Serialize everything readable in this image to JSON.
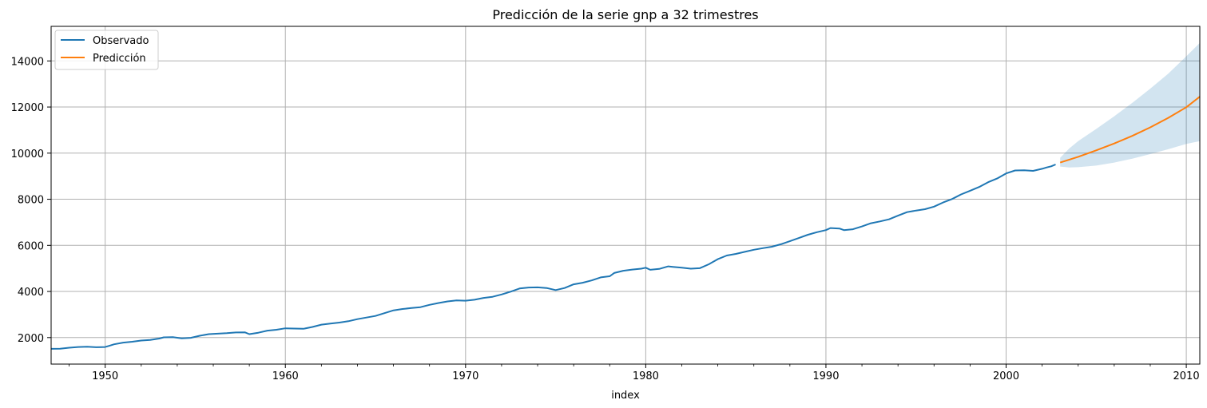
{
  "chart_data": {
    "type": "line",
    "title": "Predicción de la serie gnp a 32 trimestres",
    "xlabel": "index",
    "ylabel": "",
    "xlim": [
      1947.0,
      2010.75
    ],
    "ylim": [
      850,
      15500
    ],
    "x_ticks": [
      1950,
      1960,
      1970,
      1980,
      1990,
      2000,
      2010
    ],
    "x_tick_labels": [
      "1950",
      "1960",
      "1970",
      "1980",
      "1990",
      "2000",
      "2010"
    ],
    "y_ticks": [
      2000,
      4000,
      6000,
      8000,
      10000,
      12000,
      14000
    ],
    "y_tick_labels": [
      "2000",
      "4000",
      "6000",
      "8000",
      "10000",
      "12000",
      "14000"
    ],
    "grid": true,
    "legend_position": "top-left",
    "legend": [
      "Observado",
      "Predicción"
    ],
    "series": [
      {
        "name": "Observado",
        "color": "#1f77b4",
        "points": [
          [
            1947.0,
            1510
          ],
          [
            1947.5,
            1520
          ],
          [
            1948.0,
            1560
          ],
          [
            1948.5,
            1590
          ],
          [
            1949.0,
            1600
          ],
          [
            1949.5,
            1580
          ],
          [
            1950.0,
            1590
          ],
          [
            1950.25,
            1650
          ],
          [
            1950.5,
            1710
          ],
          [
            1951.0,
            1780
          ],
          [
            1951.5,
            1820
          ],
          [
            1952.0,
            1870
          ],
          [
            1952.5,
            1900
          ],
          [
            1953.0,
            1960
          ],
          [
            1953.25,
            2010
          ],
          [
            1953.75,
            2020
          ],
          [
            1954.25,
            1970
          ],
          [
            1954.75,
            1990
          ],
          [
            1955.25,
            2080
          ],
          [
            1955.75,
            2150
          ],
          [
            1956.25,
            2170
          ],
          [
            1956.75,
            2190
          ],
          [
            1957.25,
            2220
          ],
          [
            1957.75,
            2230
          ],
          [
            1958.0,
            2150
          ],
          [
            1958.5,
            2210
          ],
          [
            1959.0,
            2300
          ],
          [
            1959.5,
            2340
          ],
          [
            1960.0,
            2400
          ],
          [
            1960.5,
            2390
          ],
          [
            1961.0,
            2380
          ],
          [
            1961.5,
            2460
          ],
          [
            1962.0,
            2560
          ],
          [
            1962.5,
            2610
          ],
          [
            1963.0,
            2650
          ],
          [
            1963.5,
            2710
          ],
          [
            1964.0,
            2800
          ],
          [
            1964.5,
            2870
          ],
          [
            1965.0,
            2940
          ],
          [
            1965.5,
            3060
          ],
          [
            1966.0,
            3180
          ],
          [
            1966.5,
            3240
          ],
          [
            1967.0,
            3280
          ],
          [
            1967.5,
            3320
          ],
          [
            1968.0,
            3420
          ],
          [
            1968.5,
            3500
          ],
          [
            1969.0,
            3570
          ],
          [
            1969.5,
            3610
          ],
          [
            1970.0,
            3600
          ],
          [
            1970.5,
            3640
          ],
          [
            1971.0,
            3720
          ],
          [
            1971.5,
            3770
          ],
          [
            1972.0,
            3870
          ],
          [
            1972.5,
            3990
          ],
          [
            1973.0,
            4130
          ],
          [
            1973.5,
            4170
          ],
          [
            1974.0,
            4180
          ],
          [
            1974.5,
            4150
          ],
          [
            1975.0,
            4060
          ],
          [
            1975.5,
            4150
          ],
          [
            1976.0,
            4310
          ],
          [
            1976.5,
            4380
          ],
          [
            1977.0,
            4480
          ],
          [
            1977.5,
            4610
          ],
          [
            1978.0,
            4660
          ],
          [
            1978.25,
            4800
          ],
          [
            1978.75,
            4900
          ],
          [
            1979.25,
            4950
          ],
          [
            1979.75,
            4990
          ],
          [
            1980.0,
            5030
          ],
          [
            1980.25,
            4940
          ],
          [
            1980.75,
            4980
          ],
          [
            1981.25,
            5090
          ],
          [
            1981.5,
            5070
          ],
          [
            1982.0,
            5030
          ],
          [
            1982.5,
            4990
          ],
          [
            1983.0,
            5010
          ],
          [
            1983.5,
            5180
          ],
          [
            1984.0,
            5400
          ],
          [
            1984.5,
            5560
          ],
          [
            1985.0,
            5630
          ],
          [
            1985.5,
            5720
          ],
          [
            1986.0,
            5810
          ],
          [
            1986.5,
            5880
          ],
          [
            1987.0,
            5940
          ],
          [
            1987.5,
            6050
          ],
          [
            1988.0,
            6180
          ],
          [
            1988.5,
            6320
          ],
          [
            1989.0,
            6460
          ],
          [
            1989.5,
            6570
          ],
          [
            1990.0,
            6660
          ],
          [
            1990.25,
            6750
          ],
          [
            1990.75,
            6730
          ],
          [
            1991.0,
            6660
          ],
          [
            1991.5,
            6700
          ],
          [
            1992.0,
            6820
          ],
          [
            1992.5,
            6960
          ],
          [
            1993.0,
            7040
          ],
          [
            1993.5,
            7130
          ],
          [
            1994.0,
            7290
          ],
          [
            1994.5,
            7440
          ],
          [
            1995.0,
            7510
          ],
          [
            1995.5,
            7570
          ],
          [
            1996.0,
            7680
          ],
          [
            1996.5,
            7860
          ],
          [
            1997.0,
            8010
          ],
          [
            1997.5,
            8210
          ],
          [
            1998.0,
            8370
          ],
          [
            1998.5,
            8530
          ],
          [
            1999.0,
            8740
          ],
          [
            1999.5,
            8900
          ],
          [
            2000.0,
            9120
          ],
          [
            2000.5,
            9250
          ],
          [
            2001.0,
            9260
          ],
          [
            2001.5,
            9230
          ],
          [
            2002.0,
            9320
          ],
          [
            2002.25,
            9380
          ],
          [
            2002.5,
            9430
          ],
          [
            2002.75,
            9510
          ]
        ]
      },
      {
        "name": "Predicción",
        "color": "#ff7f0e",
        "points": [
          [
            2003.0,
            9590
          ],
          [
            2004.0,
            9840
          ],
          [
            2005.0,
            10120
          ],
          [
            2006.0,
            10420
          ],
          [
            2007.0,
            10750
          ],
          [
            2008.0,
            11120
          ],
          [
            2009.0,
            11530
          ],
          [
            2010.0,
            11990
          ],
          [
            2010.75,
            12450
          ]
        ]
      }
    ],
    "confidence_band": {
      "color": "#1f77b4",
      "upper": [
        [
          2003.0,
          9800
        ],
        [
          2003.5,
          10200
        ],
        [
          2004.0,
          10520
        ],
        [
          2005.0,
          11050
        ],
        [
          2006.0,
          11600
        ],
        [
          2007.0,
          12180
        ],
        [
          2008.0,
          12800
        ],
        [
          2009.0,
          13450
        ],
        [
          2010.0,
          14200
        ],
        [
          2010.75,
          14780
        ]
      ],
      "lower": [
        [
          2003.0,
          9420
        ],
        [
          2003.5,
          9380
        ],
        [
          2004.0,
          9390
        ],
        [
          2005.0,
          9460
        ],
        [
          2006.0,
          9590
        ],
        [
          2007.0,
          9760
        ],
        [
          2008.0,
          9960
        ],
        [
          2009.0,
          10170
        ],
        [
          2010.0,
          10400
        ],
        [
          2010.75,
          10520
        ]
      ]
    }
  }
}
